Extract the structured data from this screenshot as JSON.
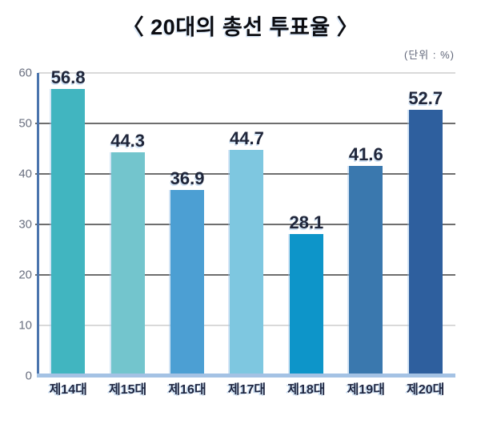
{
  "chart_data": {
    "type": "bar",
    "title": "〈 20대의 총선 투표율 〉",
    "unit_label": "(단위 : %)",
    "categories": [
      "제14대",
      "제15대",
      "제16대",
      "제17대",
      "제18대",
      "제19대",
      "제20대"
    ],
    "values": [
      56.8,
      44.3,
      36.9,
      44.7,
      28.1,
      41.6,
      52.7
    ],
    "value_labels": [
      "56.8",
      "44.3",
      "36.9",
      "44.7",
      "28.1",
      "41.6",
      "52.7"
    ],
    "bar_colors": [
      "#41b5c0",
      "#73c5cd",
      "#4c9fd3",
      "#7ec7e0",
      "#0d95c9",
      "#3a78ae",
      "#2e5f9e"
    ],
    "xlabel": "",
    "ylabel": "",
    "ylim": [
      0,
      60
    ],
    "y_ticks": [
      0,
      10,
      20,
      30,
      40,
      50,
      60
    ],
    "dark_gridline_ticks": [
      20,
      30,
      40,
      50
    ],
    "grid": "horizontal",
    "legend": "none",
    "colors": {
      "axis_line": "#4a74ad",
      "baseline": "#a4c2e4",
      "gridline_dark": "#6e6e6e",
      "gridline_light": "#b3b3b3",
      "title_text": "#0c0d12",
      "value_text": "#20263a",
      "tick_text": "#6a7080",
      "category_text": "#1e2540"
    }
  }
}
